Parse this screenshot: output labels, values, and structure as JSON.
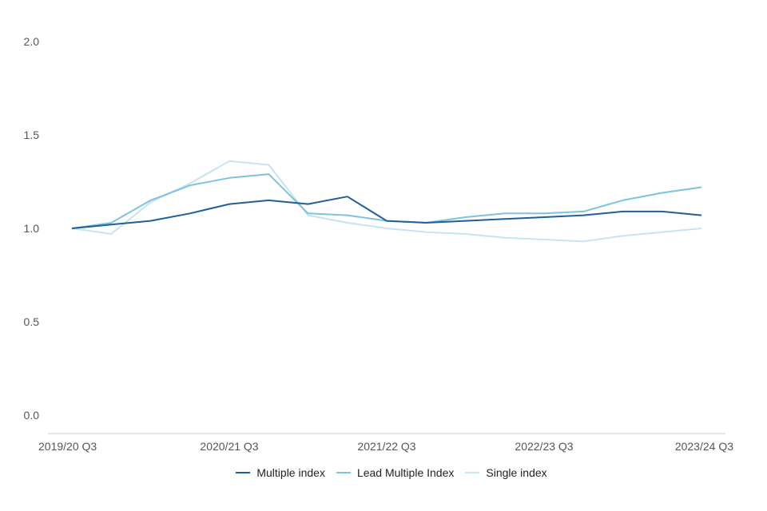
{
  "chart_data": {
    "type": "line",
    "title": "",
    "xlabel": "",
    "ylabel": "",
    "ylim": [
      0,
      2
    ],
    "yticks": [
      "0.0",
      "0.5",
      "1.0",
      "1.5",
      "2.0"
    ],
    "x": [
      "2019/20 Q3",
      "2019/20 Q4",
      "2020/21 Q1",
      "2020/21 Q2",
      "2020/21 Q3",
      "2020/21 Q4",
      "2021/22 Q1",
      "2021/22 Q2",
      "2021/22 Q3",
      "2021/22 Q4",
      "2022/23 Q1",
      "2022/23 Q2",
      "2022/23 Q3",
      "2022/23 Q4",
      "2023/24 Q1",
      "2023/24 Q2",
      "2023/24 Q3"
    ],
    "xtick_labels": [
      "2019/20 Q3",
      "2020/21 Q3",
      "2021/22 Q3",
      "2022/23 Q3",
      "2023/24 Q3"
    ],
    "grid": false,
    "legend_position": "bottom",
    "series": [
      {
        "name": "Multiple index",
        "color": "#1f5f99",
        "values": [
          1.0,
          1.02,
          1.04,
          1.08,
          1.13,
          1.15,
          1.13,
          1.17,
          1.04,
          1.03,
          1.04,
          1.05,
          1.06,
          1.07,
          1.09,
          1.09,
          1.07
        ]
      },
      {
        "name": "Lead Multiple Index",
        "color": "#7ec3de",
        "values": [
          1.0,
          1.03,
          1.15,
          1.23,
          1.27,
          1.29,
          1.08,
          1.07,
          1.04,
          1.03,
          1.06,
          1.08,
          1.08,
          1.09,
          1.15,
          1.19,
          1.22
        ]
      },
      {
        "name": "Single index",
        "color": "#c6e3ef",
        "values": [
          1.0,
          0.97,
          1.14,
          1.24,
          1.36,
          1.34,
          1.07,
          1.03,
          1.0,
          0.98,
          0.97,
          0.95,
          0.94,
          0.93,
          0.96,
          0.98,
          1.0
        ]
      }
    ]
  }
}
